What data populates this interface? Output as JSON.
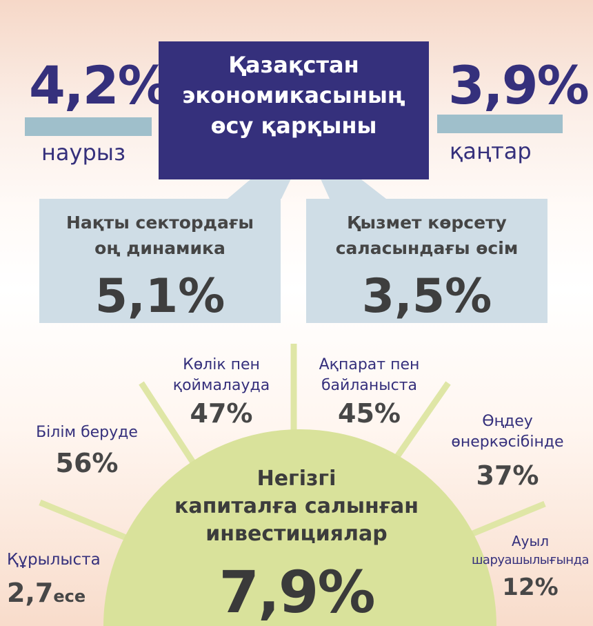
{
  "header": {
    "title_lines": [
      "Қазақстан",
      "экономикасының",
      "өсу қарқыны"
    ]
  },
  "march": {
    "value": "4,2%",
    "label": "наурыз"
  },
  "january": {
    "value": "3,9%",
    "label": "қаңтар"
  },
  "real_sector": {
    "label_lines": [
      "Нақты сектордағы",
      "оң динамика"
    ],
    "value": "5,1%"
  },
  "services": {
    "label_lines": [
      "Қызмет көрсету",
      "саласындағы өсім"
    ],
    "value": "3,5%"
  },
  "investment": {
    "label_lines": [
      "Негізгі",
      "капиталға салынған",
      "инвестициялар"
    ],
    "value": "7,9%"
  },
  "sectors": [
    {
      "label_lines": [
        "Құрылыста"
      ],
      "value": "2,7",
      "suffix": "есе"
    },
    {
      "label_lines": [
        "Білім беруде"
      ],
      "value": "56%"
    },
    {
      "label_lines": [
        "Көлік пен",
        "қоймалауда"
      ],
      "value": "47%"
    },
    {
      "label_lines": [
        "Ақпарат пен",
        "байланыста"
      ],
      "value": "45%"
    },
    {
      "label_lines": [
        "Өңдеу",
        "өнеркәсібінде"
      ],
      "value": "37%"
    },
    {
      "label_lines": [
        "Ауыл",
        "шаруашылығында"
      ],
      "value": "12%"
    }
  ],
  "colors": {
    "navy": "#35307c",
    "light_blue_box": "#cfdde6",
    "bar": "#9fbfcb",
    "sun": "#d9e29b",
    "ray": "#dfe6a6"
  }
}
